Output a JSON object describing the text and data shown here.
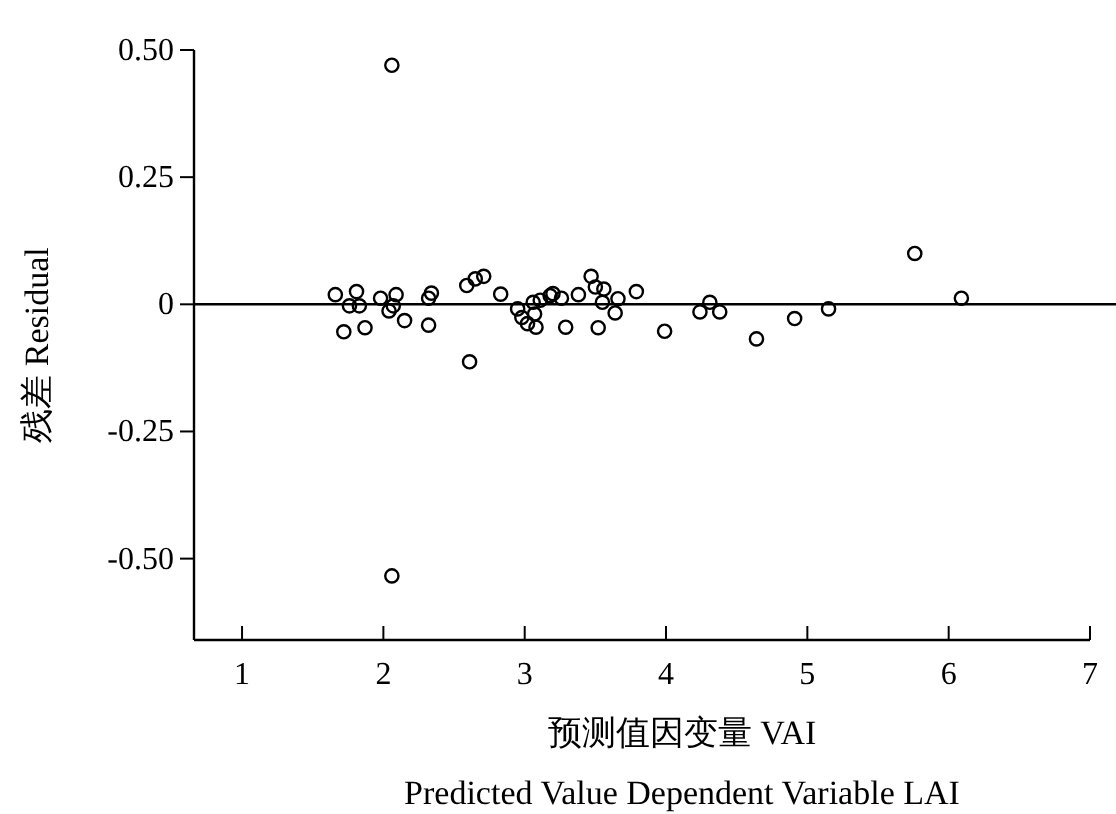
{
  "chart_data": {
    "type": "scatter",
    "xlabel": "预测值因变量 VAI\nPredicted Value Dependent Variable LAI",
    "ylabel": "残差 Residual",
    "xlim": [
      0.66,
      7
    ],
    "ylim": [
      -0.66,
      0.5
    ],
    "xticks": [
      1,
      2,
      3,
      4,
      5,
      6,
      7
    ],
    "yticks": [
      {
        "value": 0.5,
        "label": "0.50"
      },
      {
        "value": 0.25,
        "label": "0.25"
      },
      0,
      {
        "value": -0.25,
        "label": "-0.25"
      },
      {
        "value": -0.5,
        "label": "-0.50"
      }
    ],
    "marker": "circle",
    "grid": false,
    "ref_lines": [
      {
        "axis": "y",
        "value": 0,
        "color": "#000000"
      }
    ],
    "series": [
      {
        "color": "#000000",
        "x": [
          2.06,
          1.66,
          1.81,
          1.76,
          1.83,
          1.72,
          1.87,
          1.98,
          2.09,
          2.04,
          2.07,
          2.15,
          2.32,
          2.32,
          2.34,
          2.61,
          2.59,
          2.65,
          2.71,
          2.83,
          2.95,
          2.98,
          3.02,
          3.08,
          3.07,
          3.06,
          3.11,
          3.18,
          3.2,
          3.26,
          3.29,
          3.38,
          3.47,
          3.5,
          3.56,
          3.52,
          3.55,
          3.64,
          3.66,
          3.79,
          3.99,
          4.24,
          4.31,
          4.38,
          4.64,
          4.91,
          5.15,
          5.76,
          6.09,
          2.06
        ],
        "values": [
          0.47,
          0.019,
          0.025,
          -0.003,
          -0.003,
          -0.054,
          -0.046,
          0.012,
          0.019,
          -0.013,
          -0.003,
          -0.032,
          -0.041,
          0.012,
          0.022,
          -0.113,
          0.037,
          0.05,
          0.055,
          0.02,
          -0.009,
          -0.026,
          -0.038,
          -0.045,
          -0.019,
          0.004,
          0.008,
          0.017,
          0.021,
          0.012,
          -0.045,
          0.019,
          0.055,
          0.034,
          0.03,
          -0.046,
          0.004,
          -0.017,
          0.011,
          0.025,
          -0.053,
          -0.015,
          0.004,
          -0.015,
          -0.068,
          -0.028,
          -0.009,
          0.1,
          0.012,
          -0.534
        ]
      }
    ]
  }
}
